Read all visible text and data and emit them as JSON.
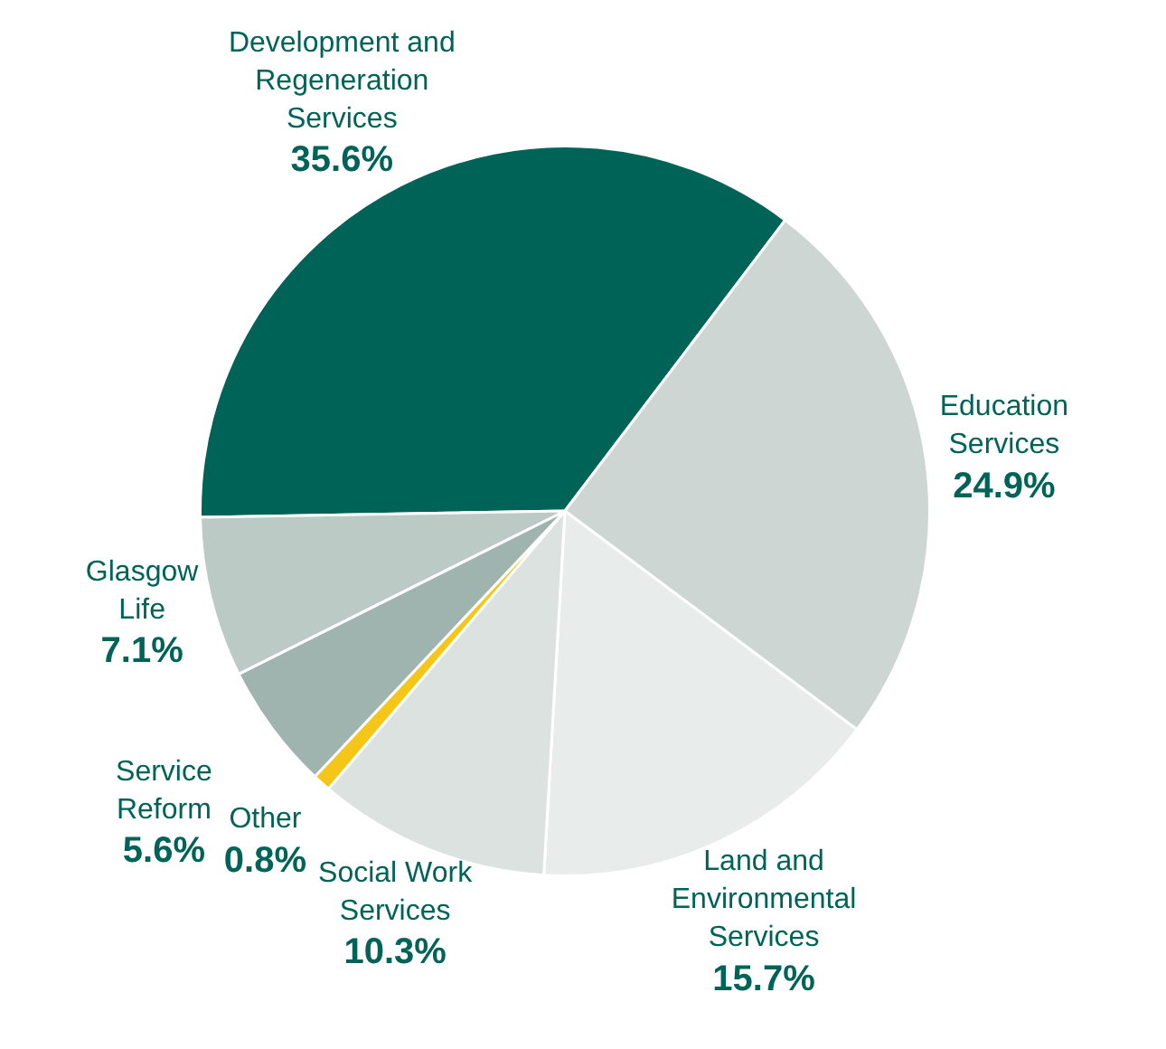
{
  "chart_data": {
    "type": "pie",
    "categories": [
      "Development and\nRegeneration\nServices",
      "Education\nServices",
      "Land and\nEnvironmental\nServices",
      "Social Work\nServices",
      "Other",
      "Service\nReform",
      "Glasgow\nLife"
    ],
    "values": [
      35.6,
      24.9,
      15.7,
      10.3,
      0.8,
      5.6,
      7.1
    ],
    "value_labels": [
      "35.6%",
      "24.9%",
      "15.7%",
      "10.3%",
      "0.8%",
      "5.6%",
      "7.1%"
    ],
    "colors": [
      "#006357",
      "#cdd6d3",
      "#e8edec",
      "#dce2e0",
      "#f5c518",
      "#9fb4ae",
      "#bccac5"
    ],
    "legend": false
  }
}
